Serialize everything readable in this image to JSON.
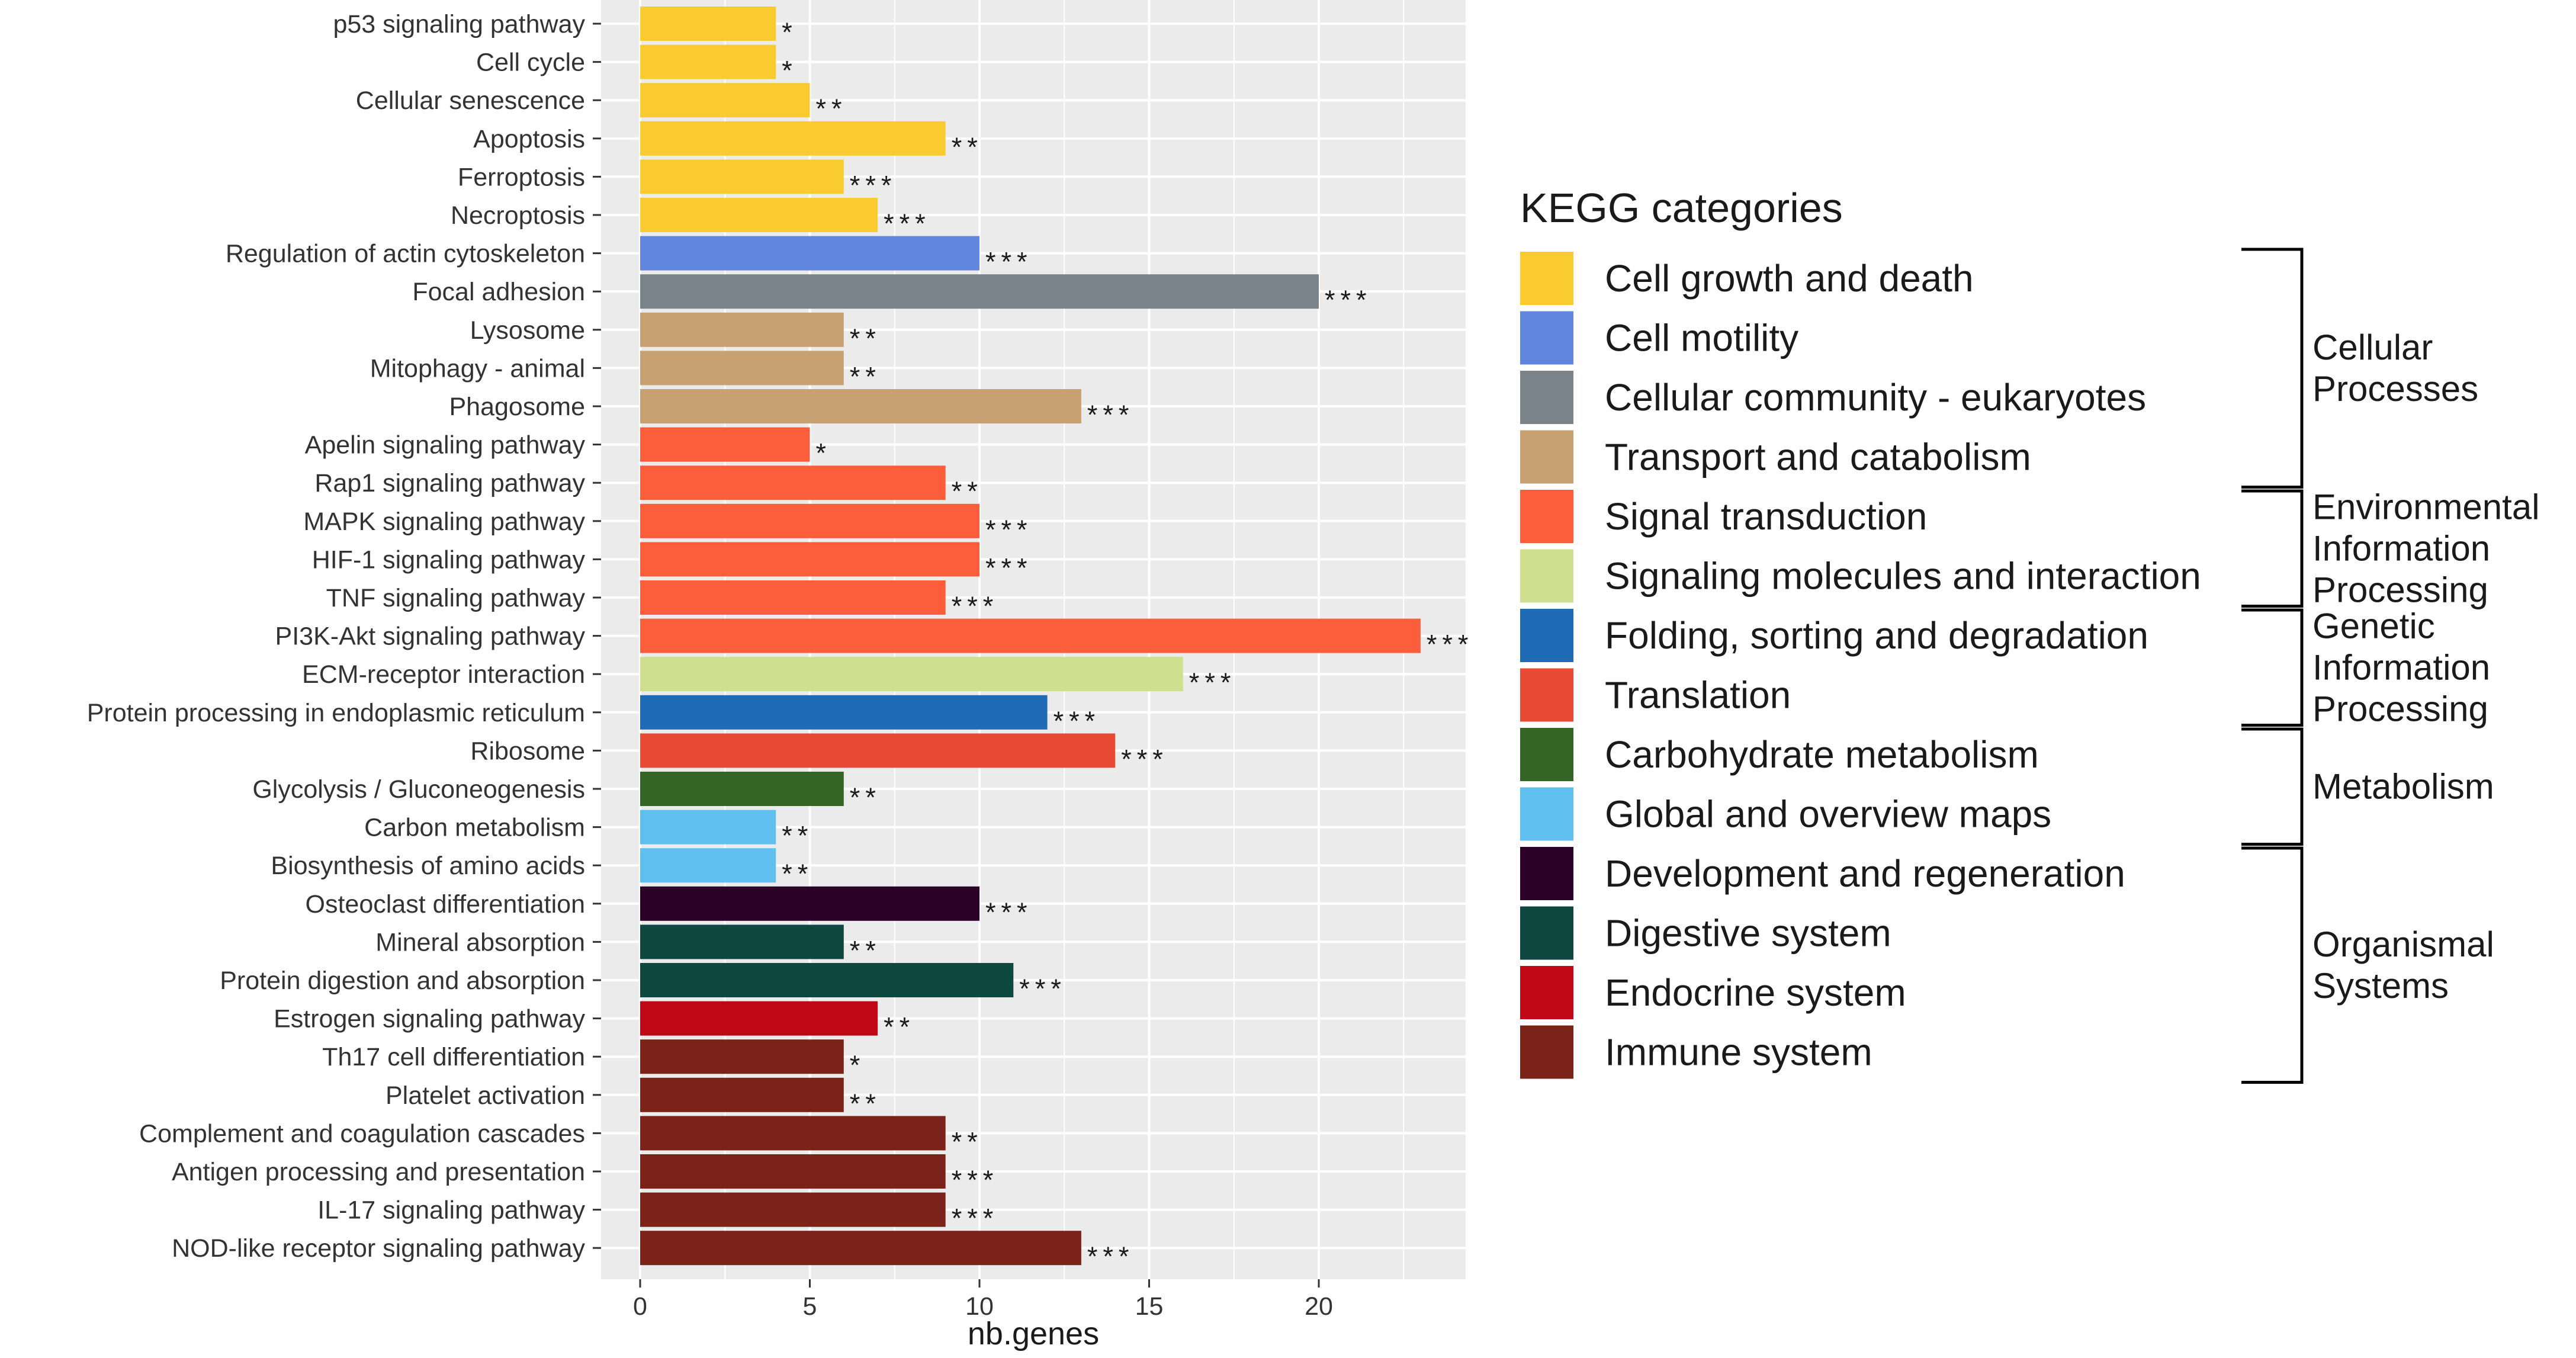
{
  "chart_data": {
    "type": "bar",
    "orientation": "horizontal",
    "title": "",
    "xlabel": "nb.genes",
    "ylabel": "",
    "xlim": [
      0,
      24
    ],
    "x_ticks": [
      0,
      5,
      10,
      15,
      20
    ],
    "grid": true,
    "legend_title": "KEGG categories",
    "legend_position": "right",
    "categories": [
      {
        "name": "Cell growth and death",
        "color": "#FACB2E"
      },
      {
        "name": "Cell motility",
        "color": "#6186DE"
      },
      {
        "name": "Cellular community - eukaryotes",
        "color": "#7B838A"
      },
      {
        "name": "Transport and catabolism",
        "color": "#C8A172"
      },
      {
        "name": "Signal transduction",
        "color": "#FC5E3C"
      },
      {
        "name": "Signaling molecules and interaction",
        "color": "#CEE08F"
      },
      {
        "name": "Folding, sorting and degradation",
        "color": "#1F6BB5"
      },
      {
        "name": "Translation",
        "color": "#E84A35"
      },
      {
        "name": "Carbohydrate metabolism",
        "color": "#346525"
      },
      {
        "name": "Global and overview maps",
        "color": "#5FBFEE"
      },
      {
        "name": "Development and regeneration",
        "color": "#2B0128"
      },
      {
        "name": "Digestive system",
        "color": "#0F4741"
      },
      {
        "name": "Endocrine system",
        "color": "#BF0715"
      },
      {
        "name": "Immune system",
        "color": "#7B2318"
      }
    ],
    "groups": [
      {
        "label_lines": [
          "Cellular",
          "Processes"
        ],
        "first": 0,
        "last": 3
      },
      {
        "label_lines": [
          "Environmental",
          "Information",
          "Processing"
        ],
        "first": 4,
        "last": 5
      },
      {
        "label_lines": [
          "Genetic",
          "Information",
          "Processing"
        ],
        "first": 6,
        "last": 7
      },
      {
        "label_lines": [
          "Metabolism"
        ],
        "first": 8,
        "last": 9
      },
      {
        "label_lines": [
          "Organismal",
          "Systems"
        ],
        "first": 10,
        "last": 13
      }
    ],
    "bars": [
      {
        "pathway": "p53 signaling pathway",
        "value": 4,
        "sig": "*",
        "category": 0
      },
      {
        "pathway": "Cell cycle",
        "value": 4,
        "sig": "*",
        "category": 0
      },
      {
        "pathway": "Cellular senescence",
        "value": 5,
        "sig": "**",
        "category": 0
      },
      {
        "pathway": "Apoptosis",
        "value": 9,
        "sig": "**",
        "category": 0
      },
      {
        "pathway": "Ferroptosis",
        "value": 6,
        "sig": "***",
        "category": 0
      },
      {
        "pathway": "Necroptosis",
        "value": 7,
        "sig": "***",
        "category": 0
      },
      {
        "pathway": "Regulation of actin cytoskeleton",
        "value": 10,
        "sig": "***",
        "category": 1
      },
      {
        "pathway": "Focal adhesion",
        "value": 20,
        "sig": "***",
        "category": 2
      },
      {
        "pathway": "Lysosome",
        "value": 6,
        "sig": "**",
        "category": 3
      },
      {
        "pathway": "Mitophagy - animal",
        "value": 6,
        "sig": "**",
        "category": 3
      },
      {
        "pathway": "Phagosome",
        "value": 13,
        "sig": "***",
        "category": 3
      },
      {
        "pathway": "Apelin signaling pathway",
        "value": 5,
        "sig": "*",
        "category": 4
      },
      {
        "pathway": "Rap1 signaling pathway",
        "value": 9,
        "sig": "**",
        "category": 4
      },
      {
        "pathway": "MAPK signaling pathway",
        "value": 10,
        "sig": "***",
        "category": 4
      },
      {
        "pathway": "HIF-1 signaling pathway",
        "value": 10,
        "sig": "***",
        "category": 4
      },
      {
        "pathway": "TNF signaling pathway",
        "value": 9,
        "sig": "***",
        "category": 4
      },
      {
        "pathway": "PI3K-Akt signaling pathway",
        "value": 23,
        "sig": "***",
        "category": 4
      },
      {
        "pathway": "ECM-receptor interaction",
        "value": 16,
        "sig": "***",
        "category": 5
      },
      {
        "pathway": "Protein processing in endoplasmic reticulum",
        "value": 12,
        "sig": "***",
        "category": 6
      },
      {
        "pathway": "Ribosome",
        "value": 14,
        "sig": "***",
        "category": 7
      },
      {
        "pathway": "Glycolysis / Gluconeogenesis",
        "value": 6,
        "sig": "**",
        "category": 8
      },
      {
        "pathway": "Carbon metabolism",
        "value": 4,
        "sig": "**",
        "category": 9
      },
      {
        "pathway": "Biosynthesis of amino acids",
        "value": 4,
        "sig": "**",
        "category": 9
      },
      {
        "pathway": "Osteoclast differentiation",
        "value": 10,
        "sig": "***",
        "category": 10
      },
      {
        "pathway": "Mineral absorption",
        "value": 6,
        "sig": "**",
        "category": 11
      },
      {
        "pathway": "Protein digestion and absorption",
        "value": 11,
        "sig": "***",
        "category": 11
      },
      {
        "pathway": "Estrogen signaling pathway",
        "value": 7,
        "sig": "**",
        "category": 12
      },
      {
        "pathway": "Th17 cell differentiation",
        "value": 6,
        "sig": "*",
        "category": 13
      },
      {
        "pathway": "Platelet activation",
        "value": 6,
        "sig": "**",
        "category": 13
      },
      {
        "pathway": "Complement and coagulation cascades",
        "value": 9,
        "sig": "**",
        "category": 13
      },
      {
        "pathway": "Antigen processing and presentation",
        "value": 9,
        "sig": "***",
        "category": 13
      },
      {
        "pathway": "IL-17 signaling pathway",
        "value": 9,
        "sig": "***",
        "category": 13
      },
      {
        "pathway": "NOD-like receptor signaling pathway",
        "value": 13,
        "sig": "***",
        "category": 13
      }
    ]
  }
}
